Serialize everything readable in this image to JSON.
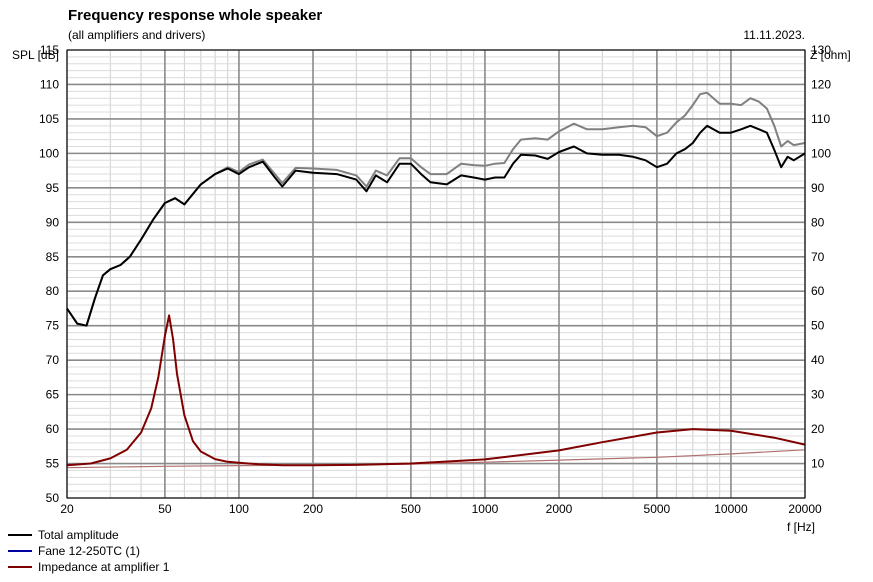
{
  "header": {
    "title": "Frequency response whole speaker",
    "subtitle": "(all amplifiers and drivers)",
    "date": "11.11.2023."
  },
  "axes": {
    "y_left_label": "SPL [dB]",
    "y_right_label": "Z [ohm]",
    "x_label": "f [Hz]"
  },
  "legend": [
    {
      "label": "Total amplitude",
      "color": "#000000"
    },
    {
      "label": "Fane 12-250TC (1)",
      "color": "#0000a0"
    },
    {
      "label": "Impedance at amplifier 1",
      "color": "#800000"
    }
  ],
  "chart_data": {
    "type": "line",
    "x_scale": "log",
    "xlim": [
      20,
      20000
    ],
    "ylim_left": [
      50,
      115
    ],
    "ylim_right": [
      0,
      130
    ],
    "x_ticks": [
      20,
      50,
      100,
      200,
      500,
      1000,
      2000,
      5000,
      10000,
      20000
    ],
    "x_tick_labels": [
      "20",
      "50",
      "100",
      "200",
      "500",
      "1000",
      "2000",
      "5000",
      "10000",
      "20000"
    ],
    "y_left_ticks": [
      50,
      55,
      60,
      65,
      70,
      75,
      80,
      85,
      90,
      95,
      100,
      105,
      110,
      115
    ],
    "y_right_ticks": [
      10,
      20,
      30,
      40,
      50,
      60,
      70,
      80,
      90,
      100,
      110,
      120,
      130
    ],
    "grid": true,
    "series": [
      {
        "name": "Total amplitude",
        "axis": "left",
        "color": "#000000",
        "x": [
          20,
          22,
          24,
          26,
          28,
          30,
          33,
          36,
          40,
          45,
          50,
          55,
          60,
          70,
          80,
          90,
          100,
          110,
          125,
          140,
          150,
          170,
          200,
          250,
          300,
          330,
          360,
          400,
          450,
          500,
          550,
          600,
          700,
          800,
          900,
          1000,
          1100,
          1200,
          1300,
          1400,
          1600,
          1800,
          2000,
          2300,
          2600,
          3000,
          3500,
          4000,
          4500,
          5000,
          5500,
          6000,
          6500,
          7000,
          7500,
          8000,
          9000,
          10000,
          11000,
          12000,
          13000,
          14000,
          15000,
          16000,
          17000,
          18000,
          20000
        ],
        "y": [
          77.5,
          75.3,
          75.0,
          79.0,
          82.3,
          83.2,
          83.8,
          85.0,
          87.5,
          90.5,
          92.8,
          93.5,
          92.6,
          95.5,
          97.0,
          97.8,
          97.0,
          98.0,
          98.8,
          96.5,
          95.2,
          97.5,
          97.2,
          97.0,
          96.2,
          94.5,
          96.8,
          95.8,
          98.5,
          98.5,
          97.0,
          95.8,
          95.5,
          96.8,
          96.5,
          96.2,
          96.5,
          96.5,
          98.5,
          99.8,
          99.7,
          99.2,
          100.2,
          101.0,
          100.0,
          99.8,
          99.8,
          99.5,
          99.0,
          98.0,
          98.5,
          100.0,
          100.6,
          101.5,
          103.0,
          104.0,
          103.0,
          103.0,
          103.5,
          104.0,
          103.5,
          103.0,
          100.5,
          98.0,
          99.5,
          99.0,
          100.0
        ]
      },
      {
        "name": "Fane 12-250TC (1)",
        "axis": "left",
        "color": "#808080",
        "x": [
          20,
          22,
          24,
          26,
          28,
          30,
          33,
          36,
          40,
          45,
          50,
          55,
          60,
          70,
          80,
          90,
          100,
          110,
          125,
          140,
          150,
          170,
          200,
          250,
          300,
          330,
          360,
          400,
          450,
          500,
          550,
          600,
          700,
          800,
          900,
          1000,
          1100,
          1200,
          1300,
          1400,
          1600,
          1800,
          2000,
          2300,
          2600,
          3000,
          3500,
          4000,
          4500,
          5000,
          5500,
          6000,
          6500,
          7000,
          7500,
          8000,
          9000,
          10000,
          11000,
          12000,
          13000,
          14000,
          15000,
          16000,
          17000,
          18000,
          20000
        ],
        "y": [
          77.5,
          75.3,
          75.0,
          79.0,
          82.3,
          83.2,
          83.8,
          85.0,
          87.5,
          90.5,
          92.8,
          93.5,
          92.6,
          95.5,
          97.0,
          98.0,
          97.3,
          98.4,
          99.1,
          97.0,
          95.7,
          97.9,
          97.8,
          97.6,
          96.8,
          95.2,
          97.5,
          96.8,
          99.3,
          99.3,
          98.0,
          97.0,
          97.0,
          98.5,
          98.3,
          98.2,
          98.5,
          98.6,
          100.6,
          102.0,
          102.2,
          102.0,
          103.2,
          104.3,
          103.5,
          103.5,
          103.8,
          104.0,
          103.8,
          102.5,
          103.0,
          104.5,
          105.5,
          107.0,
          108.6,
          108.8,
          107.2,
          107.2,
          107.0,
          108.0,
          107.5,
          106.5,
          104.0,
          101.0,
          101.8,
          101.2,
          101.5
        ]
      },
      {
        "name": "Impedance at amplifier 1",
        "axis": "right",
        "color": "#800000",
        "x": [
          20,
          25,
          30,
          35,
          40,
          44,
          47,
          50,
          52,
          54,
          56,
          60,
          65,
          70,
          80,
          90,
          100,
          120,
          150,
          200,
          300,
          500,
          800,
          1000,
          2000,
          3000,
          5000,
          7000,
          10000,
          15000,
          20000
        ],
        "y": [
          9.5,
          10.0,
          11.5,
          14.0,
          19.0,
          26.0,
          35.0,
          47.0,
          53.0,
          46.0,
          36.0,
          24.0,
          16.5,
          13.5,
          11.3,
          10.5,
          10.2,
          9.8,
          9.5,
          9.5,
          9.6,
          10.0,
          10.8,
          11.2,
          13.8,
          16.2,
          19.0,
          20.0,
          19.5,
          17.5,
          15.5
        ]
      },
      {
        "axis": "right",
        "color": "#b07070",
        "x": [
          20,
          50,
          100,
          200,
          500,
          1000,
          2000,
          5000,
          10000,
          20000
        ],
        "y": [
          8.8,
          9.2,
          9.4,
          9.5,
          9.8,
          10.4,
          11.0,
          11.8,
          12.8,
          14.0
        ]
      }
    ]
  }
}
